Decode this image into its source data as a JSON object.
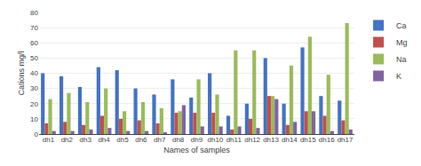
{
  "chart_data": {
    "type": "bar",
    "xlabel": "Names of samples",
    "ylabel": "Cations mg/l",
    "categories": [
      "dh1",
      "dh2",
      "dh3",
      "dh4",
      "dh5",
      "dh6",
      "dh7",
      "dh8",
      "dh9",
      "dh10",
      "dh11",
      "dh12",
      "dh13",
      "dh14",
      "dh15",
      "dh16",
      "dh17"
    ],
    "series": [
      {
        "name": "Ca",
        "color": "#4472C4",
        "values": [
          40,
          38,
          31,
          44,
          42,
          30,
          26,
          36,
          24,
          40,
          12,
          20,
          50,
          20,
          57,
          25,
          22
        ]
      },
      {
        "name": "Mg",
        "color": "#C0504D",
        "values": [
          7,
          8,
          6,
          12,
          10,
          9,
          7,
          14,
          14,
          14,
          3,
          10,
          25,
          6,
          15,
          12,
          9
        ]
      },
      {
        "name": "Na",
        "color": "#9BBB59",
        "values": [
          23,
          27,
          21,
          30,
          15,
          21,
          17,
          15,
          36,
          26,
          55,
          55,
          25,
          45,
          64,
          39,
          73
        ]
      },
      {
        "name": "K",
        "color": "#8064A2",
        "values": [
          2,
          2,
          3,
          4,
          2,
          2,
          1,
          19,
          5,
          5,
          5,
          4,
          23,
          8,
          15,
          2,
          3
        ]
      }
    ],
    "ylim": [
      0,
      80
    ],
    "yticks": [
      0,
      10,
      20,
      30,
      40,
      50,
      60,
      70,
      80
    ],
    "grid": true,
    "legend": "right"
  }
}
